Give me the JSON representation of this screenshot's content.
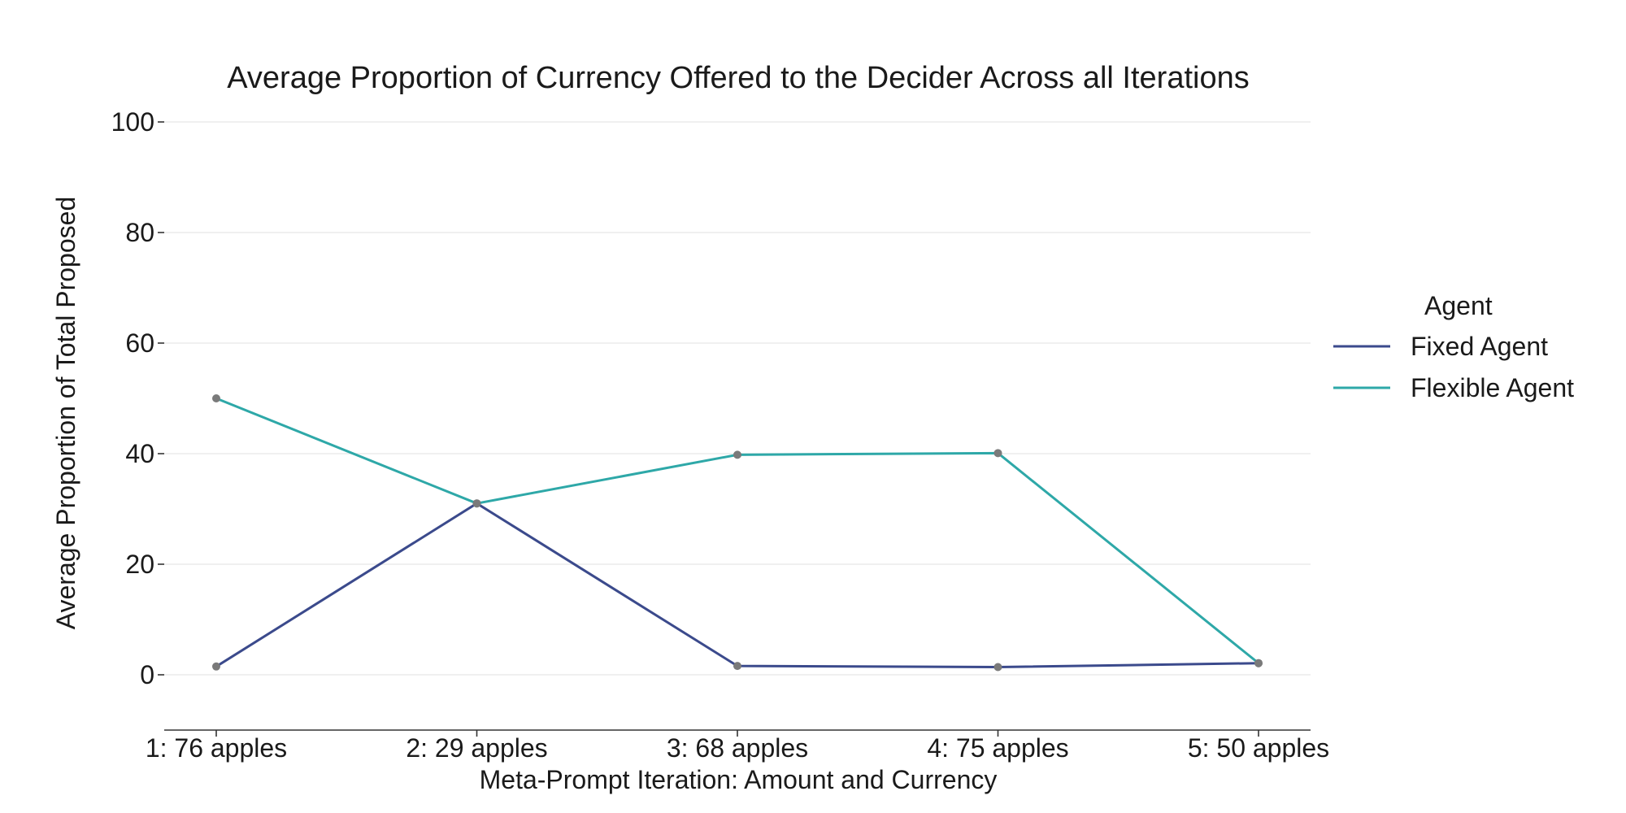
{
  "chart_data": {
    "type": "line",
    "title": "Average Proportion of Currency Offered to the Decider Across all Iterations",
    "xlabel": "Meta-Prompt Iteration: Amount and Currency",
    "ylabel": "Average Proportion of Total Proposed",
    "categories": [
      "1: 76 apples",
      "2: 29 apples",
      "3: 68 apples",
      "4: 75 apples",
      "5: 50 apples"
    ],
    "ylim": [
      -10,
      100
    ],
    "yticks": [
      0,
      20,
      40,
      60,
      80,
      100
    ],
    "grid": "horizontal",
    "legend": {
      "title": "Agent",
      "placement": "right"
    },
    "series": [
      {
        "name": "Fixed Agent",
        "color": "#3b4a8c",
        "values": [
          1.5,
          31,
          1.6,
          1.4,
          2.1
        ]
      },
      {
        "name": "Flexible Agent",
        "color": "#2ea8a8",
        "values": [
          50,
          31,
          39.8,
          40.1,
          2.1
        ]
      }
    ],
    "marker_color": "#7a7a7a"
  }
}
